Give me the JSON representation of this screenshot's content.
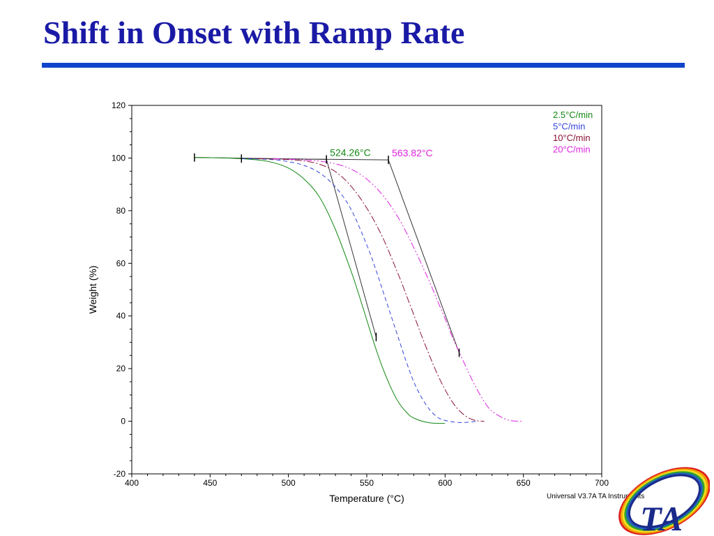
{
  "slide": {
    "title": "Shift in Onset with Ramp Rate",
    "footer": "Universal V3.7A TA Instruments"
  },
  "logo": {
    "text": "TA",
    "colors": [
      "#e02020",
      "#f0a000",
      "#f0e020",
      "#30a030",
      "#2060c0",
      "#1a2a8a"
    ]
  },
  "chart_data": {
    "type": "line",
    "xlabel": "Temperature (°C)",
    "ylabel": "Weight (%)",
    "xlim": [
      400,
      700
    ],
    "ylim": [
      -20,
      120
    ],
    "xticks": [
      "400",
      "450",
      "500",
      "550",
      "600",
      "650",
      "700"
    ],
    "yticks": [
      "-20",
      "0",
      "20",
      "40",
      "60",
      "80",
      "100",
      "120"
    ],
    "legend_position": "top-right",
    "grid": false,
    "series": [
      {
        "name": "2.5°C/min",
        "color": "#118811",
        "style": "solid",
        "x": [
          440,
          460,
          480,
          490,
          500,
          510,
          520,
          530,
          540,
          545,
          550,
          555,
          560,
          565,
          570,
          575,
          580,
          590,
          600
        ],
        "y": [
          100.2,
          100,
          99.3,
          98.3,
          96.2,
          92,
          85,
          72.8,
          57,
          48,
          38.5,
          29,
          20.5,
          13.3,
          7.5,
          3.6,
          1.2,
          -0.6,
          -0.8
        ]
      },
      {
        "name": "5°C/min",
        "color": "#3344dd",
        "style": "dashed",
        "x": [
          470,
          490,
          500,
          510,
          520,
          530,
          540,
          550,
          555,
          560,
          565,
          570,
          575,
          580,
          585,
          590,
          595,
          600,
          610,
          620
        ],
        "y": [
          99.8,
          99.4,
          98.6,
          97.2,
          94.3,
          89,
          80.5,
          67,
          59,
          50,
          41,
          32,
          23,
          15,
          9,
          4.5,
          1.6,
          0.3,
          -0.5,
          0
        ]
      },
      {
        "name": "10°C/min",
        "color": "#881133",
        "style": "dashdot",
        "x": [
          480,
          500,
          510,
          520,
          530,
          540,
          550,
          560,
          570,
          575,
          580,
          585,
          590,
          595,
          600,
          605,
          610,
          615,
          620,
          625
        ],
        "y": [
          99.8,
          99.4,
          98.9,
          97.6,
          94.8,
          89.3,
          81,
          70,
          56,
          48.3,
          40.5,
          32.5,
          25,
          18,
          12,
          7,
          3.5,
          1.3,
          0.2,
          0
        ]
      },
      {
        "name": "20°C/min",
        "color": "#dd22dd",
        "style": "dashdotdot",
        "x": [
          490,
          510,
          520,
          530,
          540,
          550,
          560,
          570,
          580,
          590,
          595,
          600,
          605,
          610,
          615,
          620,
          625,
          630,
          640,
          650
        ],
        "y": [
          99.8,
          99.3,
          98.8,
          97.8,
          95.8,
          92,
          86,
          77.5,
          66,
          53,
          46,
          39,
          31.5,
          25,
          18.5,
          12.5,
          7.5,
          3.8,
          0.5,
          0
        ]
      }
    ],
    "annotations": [
      {
        "text": "524.26°C",
        "color": "#118811",
        "x": 524.26,
        "y": 99.5
      },
      {
        "text": "563.82°C",
        "color": "#dd22dd",
        "x": 563.82,
        "y": 99.3
      }
    ],
    "baselines": [
      {
        "x": [
          440,
          524.26
        ],
        "y": [
          100.2,
          99.5
        ]
      },
      {
        "x": [
          470,
          563.82
        ],
        "y": [
          99.8,
          99.3
        ]
      }
    ],
    "tangents": [
      {
        "x": [
          524.26,
          556
        ],
        "y": [
          99.5,
          32
        ]
      },
      {
        "x": [
          563.82,
          609
        ],
        "y": [
          99.3,
          26
        ]
      }
    ],
    "markers": [
      {
        "x": 440,
        "y": 100.2
      },
      {
        "x": 470,
        "y": 99.8
      },
      {
        "x": 524.26,
        "y": 99.5
      },
      {
        "x": 563.82,
        "y": 99.3
      },
      {
        "x": 556,
        "y": 32
      },
      {
        "x": 609,
        "y": 26
      }
    ]
  }
}
